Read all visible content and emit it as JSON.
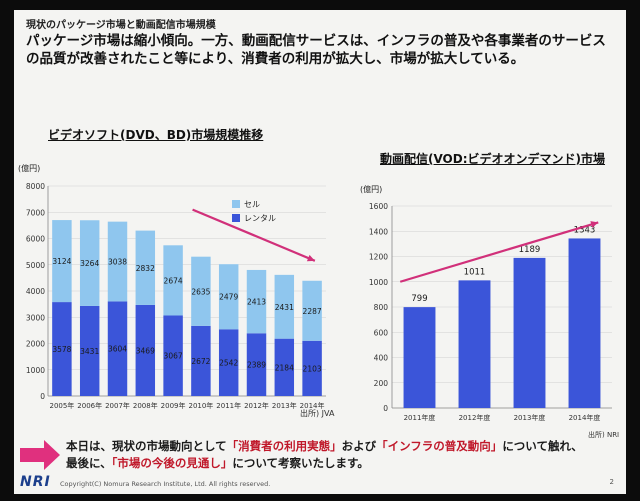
{
  "slide": {
    "small_title": "現状のパッケージ市場と動画配信市場規模",
    "headline": "パッケージ市場は縮小傾向。一方、動画配信サービスは、インフラの普及や各事業者のサービスの品質が改善されたこと等により、消費者の利用が拡大し、市場が拡大している。",
    "footer": {
      "p1": "本日は、現状の市場動向として",
      "h1": "「消費者の利用実態」",
      "p2": "および",
      "h2": "「インフラの普及動向」",
      "p3": "について触れ、",
      "p4": "最後に、",
      "h3": "「市場の今後の見通し」",
      "p5": "について考察いたします。"
    },
    "logo": "NRI",
    "copyright": "Copyright(C) Nomura Research Institute, Ltd. All rights reserved.",
    "page_number": "2",
    "colors": {
      "rental": "#3b55d9",
      "sell": "#8fc6ee",
      "right_bars": "#3b55d9",
      "arrow": "#d1307a",
      "highlight": "#c0182a"
    }
  },
  "chart_data": [
    {
      "type": "bar",
      "stacked": true,
      "title": "ビデオソフト(DVD、BD)市場規模推移",
      "ylabel": "(億円)",
      "ylim": [
        0,
        8000
      ],
      "yticks": [
        0,
        1000,
        2000,
        3000,
        4000,
        5000,
        6000,
        7000,
        8000
      ],
      "categories": [
        "2005年",
        "2006年",
        "2007年",
        "2008年",
        "2009年",
        "2010年",
        "2011年",
        "2012年",
        "2013年",
        "2014年"
      ],
      "series": [
        {
          "name": "レンタル",
          "values": [
            3578,
            3431,
            3604,
            3469,
            3067,
            2672,
            2542,
            2389,
            2184,
            2103
          ]
        },
        {
          "name": "セル",
          "values": [
            3124,
            3264,
            3038,
            2832,
            2674,
            2635,
            2479,
            2413,
            2431,
            2287
          ]
        }
      ],
      "legend_position": "top-right",
      "source": "出所) JVA"
    },
    {
      "type": "bar",
      "title": "動画配信(VOD:ビデオオンデマンド)市場",
      "ylabel": "(億円)",
      "ylim": [
        0,
        1600
      ],
      "yticks": [
        0,
        200,
        400,
        600,
        800,
        1000,
        1200,
        1400,
        1600
      ],
      "categories": [
        "2011年度",
        "2012年度",
        "2013年度",
        "2014年度"
      ],
      "values": [
        799,
        1011,
        1189,
        1343
      ],
      "source": "出所) NRI"
    }
  ]
}
